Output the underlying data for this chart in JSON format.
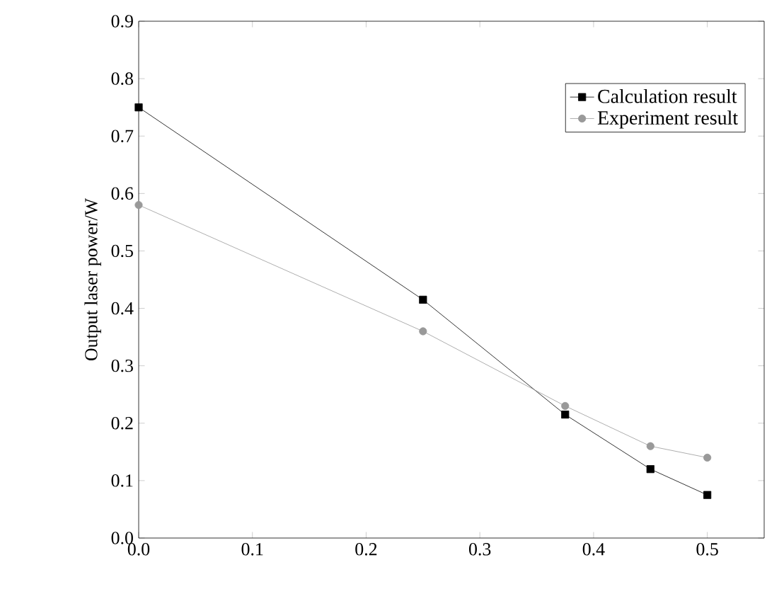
{
  "chart_data": {
    "type": "line",
    "ylabel": "Output laser power/W",
    "x": [
      0,
      0.25,
      0.375,
      0.45,
      0.5
    ],
    "series": [
      {
        "name": "Calculation result",
        "color": "#000000",
        "marker": "square",
        "values": [
          0.75,
          0.415,
          0.215,
          0.12,
          0.075
        ]
      },
      {
        "name": "Experiment result",
        "color": "#999999",
        "marker": "circle",
        "values": [
          0.58,
          0.36,
          0.23,
          0.16,
          0.14
        ]
      }
    ],
    "xlim": [
      0,
      0.55
    ],
    "xticks": [
      {
        "value": 0,
        "label": "0.0"
      },
      0.1,
      0.2,
      0.3,
      0.4,
      0.5
    ],
    "ylim": [
      0,
      0.9
    ],
    "yticks": [
      {
        "value": 0,
        "label": "0.0"
      },
      0.1,
      0.2,
      0.3,
      0.4,
      0.5,
      0.6,
      0.7,
      0.8,
      0.9
    ],
    "legend": "top right",
    "grid": false
  }
}
